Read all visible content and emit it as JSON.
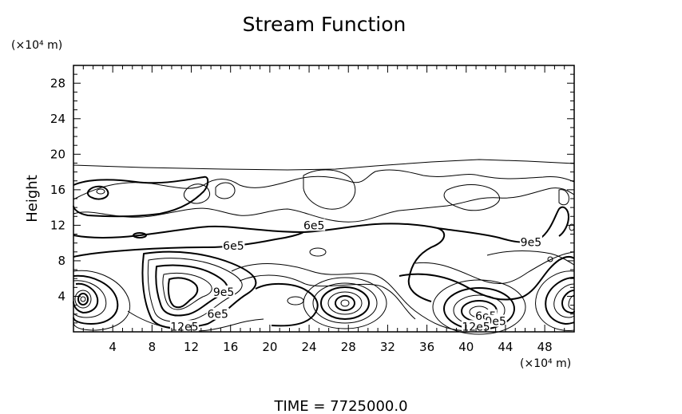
{
  "chart_data": {
    "type": "contour",
    "title": "Stream Function",
    "ylabel": "Height",
    "yunit": "(×10⁴ m)",
    "xunit": "(×10⁴ m)",
    "footer": "TIME  =  7725000.0",
    "xlim": [
      0,
      51
    ],
    "ylim": [
      0,
      30
    ],
    "xticks": [
      "4",
      "8",
      "12",
      "16",
      "20",
      "24",
      "28",
      "32",
      "36",
      "40",
      "44",
      "48"
    ],
    "yticks": [
      "4",
      "8",
      "12",
      "16",
      "20",
      "24",
      "28"
    ],
    "xtick_values": [
      4,
      8,
      12,
      16,
      20,
      24,
      28,
      32,
      36,
      40,
      44,
      48
    ],
    "ytick_values": [
      4,
      8,
      12,
      16,
      20,
      24,
      28
    ],
    "contour_labels": [
      {
        "text": "6e5",
        "x": 24.5,
        "y": 12.0
      },
      {
        "text": "6e5",
        "x": 16.3,
        "y": 9.7
      },
      {
        "text": "9e5",
        "x": 46.6,
        "y": 10.1
      },
      {
        "text": "9e5",
        "x": 15.3,
        "y": 4.5
      },
      {
        "text": "6e5",
        "x": 14.7,
        "y": 2.0
      },
      {
        "text": "12e5",
        "x": 11.3,
        "y": 0.6
      },
      {
        "text": "6e5",
        "x": 42.0,
        "y": 1.8
      },
      {
        "text": "9e5",
        "x": 43.0,
        "y": 1.2
      },
      {
        "text": "12e5",
        "x": 41.0,
        "y": 0.6
      }
    ],
    "features": {
      "centers": [
        {
          "x": 1.0,
          "y": 3.5
        },
        {
          "x": 11.3,
          "y": 4.5
        },
        {
          "x": 27.8,
          "y": 3.2
        },
        {
          "x": 40.8,
          "y": 2.2
        },
        {
          "x": 50.3,
          "y": 3.4
        }
      ],
      "small_loops": [
        {
          "x": 2.8,
          "y": 15.8
        },
        {
          "x": 6.6,
          "y": 11.0
        },
        {
          "x": 24.8,
          "y": 9.4
        },
        {
          "x": 23.0,
          "y": 3.8
        },
        {
          "x": 45.6,
          "y": 8.4
        },
        {
          "x": 50.6,
          "y": 13.3
        }
      ]
    }
  }
}
